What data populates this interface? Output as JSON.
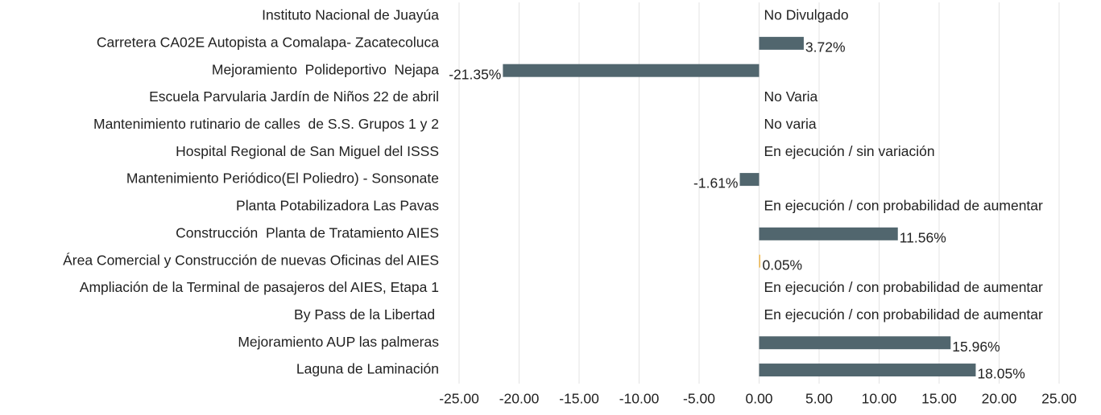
{
  "chart_data": {
    "type": "hbar",
    "categories": [
      "Instituto Nacional de Juayúa",
      "Carretera CA02E Autopista a Comalapa- Zacatecoluca",
      "Mejoramiento  Polideportivo  Nejapa",
      "Escuela Parvularia Jardín de Niños 22 de abril",
      "Mantenimiento rutinario de calles  de S.S. Grupos 1 y 2",
      "Hospital Regional de San Miguel del ISSS",
      "Mantenimiento Periódico(El Poliedro) - Sonsonate",
      "Planta Potabilizadora Las Pavas",
      "Construcción  Planta de Tratamiento AIES",
      "Área Comercial y Construcción de nuevas Oficinas del AIES",
      "Ampliación de la Terminal de pasajeros del AIES, Etapa 1",
      "By Pass de la Libertad ",
      "Mejoramiento AUP las palmeras",
      "Laguna de Laminación"
    ],
    "values": [
      null,
      3.72,
      -21.35,
      null,
      null,
      null,
      -1.61,
      null,
      11.56,
      0.05,
      null,
      null,
      15.96,
      18.05
    ],
    "value_labels": [
      "No Divulgado",
      "3.72%",
      "-21.35%",
      "No Varia",
      "No varia",
      "En ejecución / sin variación",
      "-1.61%",
      "En ejecución / con probabilidad de aumentar",
      "11.56%",
      "0.05%",
      "En ejecución / con probabilidad de aumentar",
      "En ejecución / con probabilidad de aumentar",
      "15.96%",
      "18.05%"
    ],
    "colors": [
      "#51666e",
      "#51666e",
      "#51666e",
      "#51666e",
      "#51666e",
      "#51666e",
      "#51666e",
      "#51666e",
      "#51666e",
      "#f2b84b",
      "#51666e",
      "#51666e",
      "#51666e",
      "#51666e"
    ],
    "xlim": [
      -25,
      25
    ],
    "xticks": [
      {
        "value": -25,
        "label": "-25.00"
      },
      {
        "value": -20,
        "label": "-20.00"
      },
      {
        "value": -15,
        "label": "-15.00"
      },
      {
        "value": -10,
        "label": "-10.00"
      },
      {
        "value": -5,
        "label": "-5.00"
      },
      {
        "value": 0,
        "label": "0.00"
      },
      {
        "value": 5,
        "label": "5.00"
      },
      {
        "value": 10,
        "label": "10.00"
      },
      {
        "value": 15,
        "label": "15.00"
      },
      {
        "value": 20,
        "label": "20.00"
      },
      {
        "value": 25,
        "label": "25.00"
      }
    ],
    "grid": true
  }
}
